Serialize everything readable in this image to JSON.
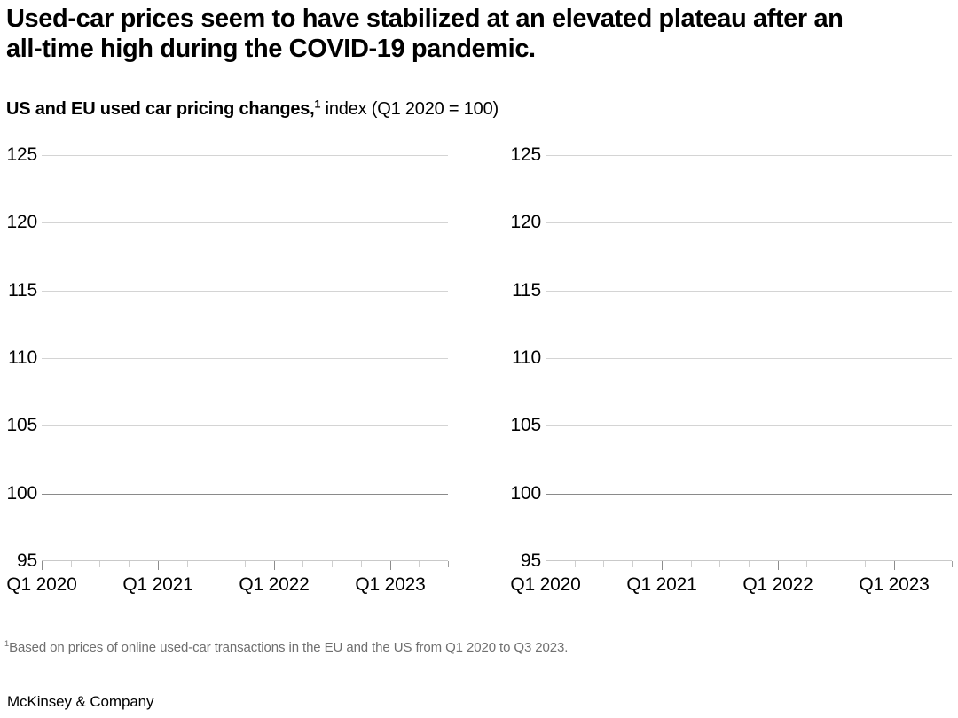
{
  "header": {
    "title_lines": [
      "Used-car prices seem to have stabilized at an elevated plateau after an",
      "all-time high during the COVID-19 pandemic."
    ],
    "subtitle_bold": "US and EU used car pricing changes,",
    "subtitle_sup": "1",
    "subtitle_rest": " index (Q1 2020 = 100)"
  },
  "axes": {
    "y_tick_labels": [
      "125",
      "120",
      "115",
      "110",
      "105",
      "100",
      "95"
    ],
    "x_tick_labels": [
      "Q1 2020",
      "Q1 2021",
      "Q1 2022",
      "Q1 2023"
    ]
  },
  "chart_data": [
    {
      "type": "line",
      "panel": "left",
      "title": "",
      "series": [],
      "x_tick_labels": [
        "Q1 2020",
        "Q1 2021",
        "Q1 2022",
        "Q1 2023"
      ],
      "x_range": [
        "Q1 2020",
        "Q3 2023"
      ],
      "x_minor_tick_interval": "quarterly (15 ticks total)",
      "y_ticks": [
        125,
        120,
        115,
        110,
        105,
        100,
        95
      ],
      "ylim": [
        95,
        125
      ],
      "grid": "horizontal gridlines on, emphasized gridline at y=100, axis baseline at y=95",
      "legend": "none",
      "data_points_visible": "none (empty axes, no plotted series)"
    },
    {
      "type": "line",
      "panel": "right",
      "title": "",
      "series": [],
      "x_tick_labels": [
        "Q1 2020",
        "Q1 2021",
        "Q1 2022",
        "Q1 2023"
      ],
      "x_range": [
        "Q1 2020",
        "Q3 2023"
      ],
      "x_minor_tick_interval": "quarterly (15 ticks total)",
      "y_ticks": [
        125,
        120,
        115,
        110,
        105,
        100,
        95
      ],
      "ylim": [
        95,
        125
      ],
      "grid": "horizontal gridlines on, emphasized gridline at y=100, axis baseline at y=95",
      "legend": "none",
      "data_points_visible": "none (empty axes, no plotted series)"
    }
  ],
  "colors": {
    "gridline": "#d4d4d4",
    "emphasized_gridline": "#8a8a8a",
    "axis_line": "#c9c9c9",
    "minor_tick": "#cfcfcf",
    "major_tick": "#8c8c8c",
    "text": "#000000",
    "footnote_text": "#6f6f6f",
    "background": "#ffffff"
  },
  "footer": {
    "footnote_sup": "1",
    "footnote_text": "Based on prices of online used-car transactions in the EU and the US from Q1 2020 to Q3 2023.",
    "brand": "McKinsey & Company"
  }
}
